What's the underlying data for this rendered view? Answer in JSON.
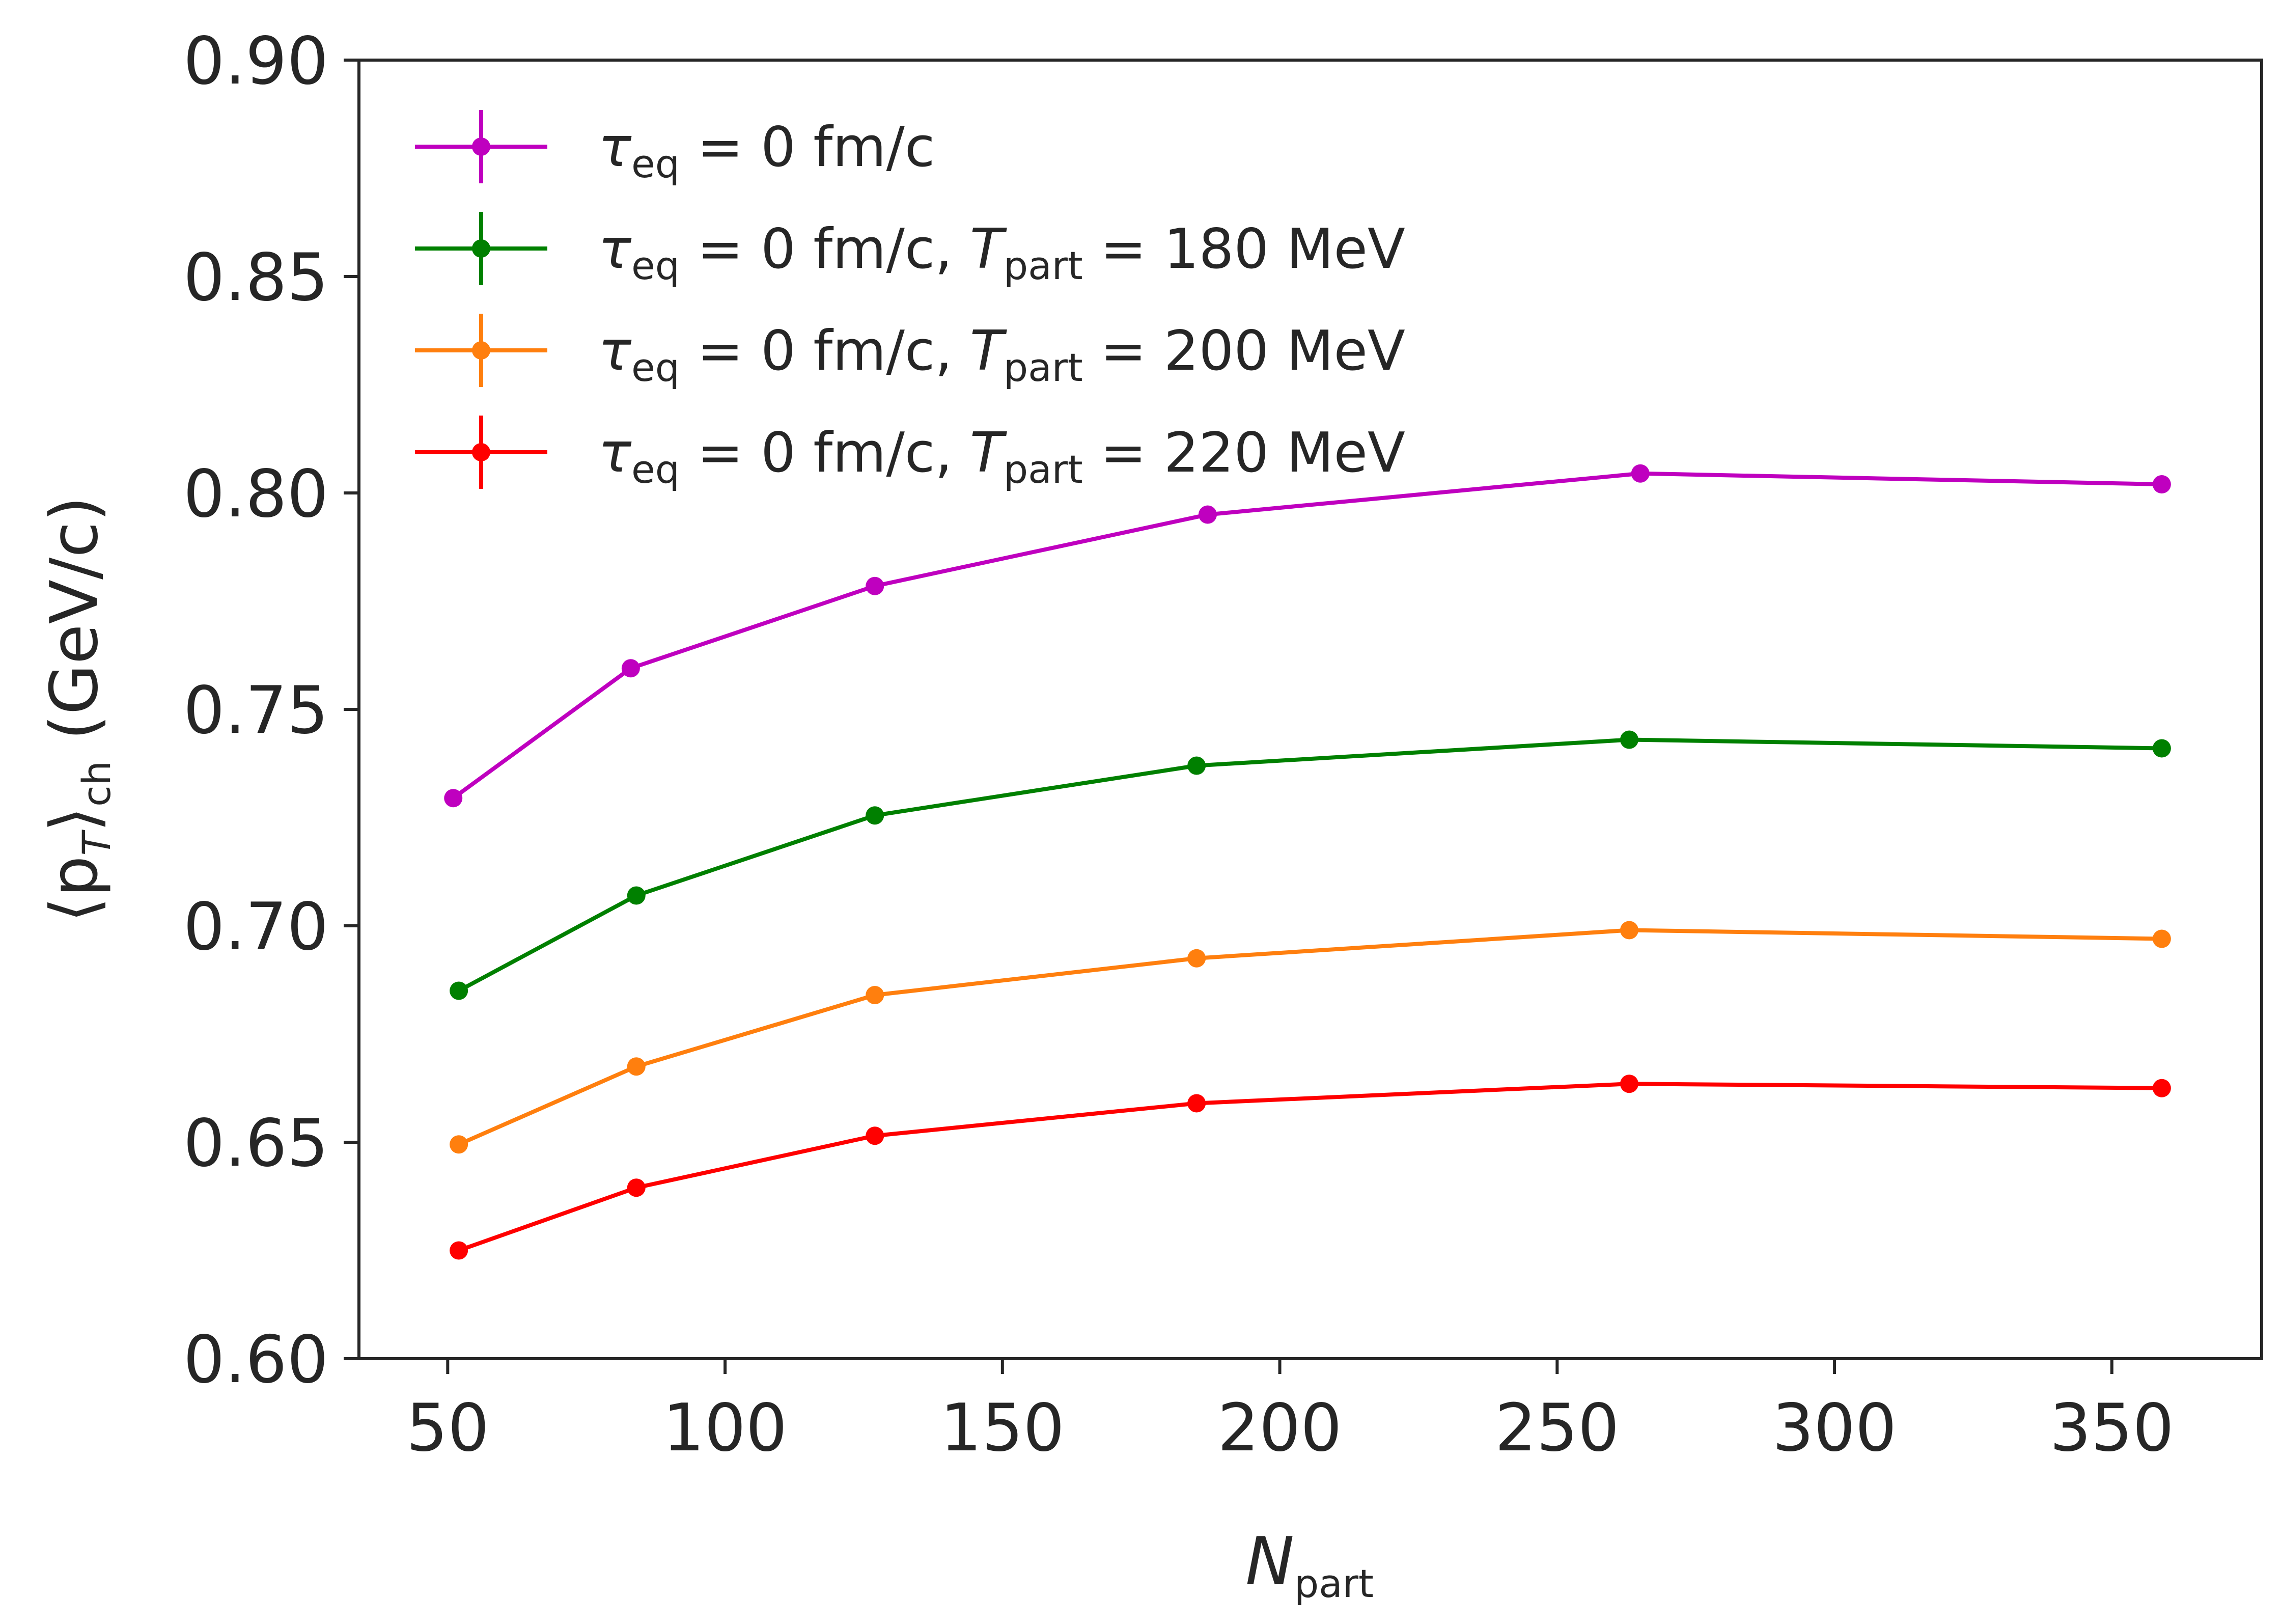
{
  "chart_data": {
    "type": "line",
    "title": "",
    "xlabel": {
      "main": "N",
      "sub": "part"
    },
    "ylabel": {
      "pre": "⟨p",
      "sub1": "T",
      "mid": "⟩",
      "sub2": "ch",
      "post": " (GeV/c)"
    },
    "xlim": [
      34,
      377
    ],
    "ylim": [
      0.6,
      0.9
    ],
    "xticks": [
      50,
      100,
      150,
      200,
      250,
      300,
      350
    ],
    "xtick_labels": [
      "50",
      "100",
      "150",
      "200",
      "250",
      "300",
      "350"
    ],
    "yticks": [
      0.6,
      0.65,
      0.7,
      0.75,
      0.8,
      0.85,
      0.9
    ],
    "ytick_labels": [
      "0.60",
      "0.65",
      "0.70",
      "0.75",
      "0.80",
      "0.85",
      "0.90"
    ],
    "grid": false,
    "legend_position": "top-left",
    "series": [
      {
        "name": "τeq = 0 fm/c",
        "legend": {
          "tau": "τ",
          "tau_sub": "eq",
          "eq": " = 0 fm/c",
          "t": "",
          "t_sub": "",
          "temp": ""
        },
        "color": "#bf00bf",
        "x": [
          51,
          83,
          127,
          187,
          265,
          359
        ],
        "y": [
          0.7295,
          0.7595,
          0.7785,
          0.795,
          0.8045,
          0.802
        ]
      },
      {
        "name": "τeq = 0 fm/c, Tpart = 180 MeV",
        "legend": {
          "tau": "τ",
          "tau_sub": "eq",
          "eq": " = 0 fm/c, ",
          "t": "T",
          "t_sub": "part",
          "temp": " = 180 MeV"
        },
        "color": "#008000",
        "x": [
          52,
          84,
          127,
          185,
          263,
          359
        ],
        "y": [
          0.685,
          0.707,
          0.7255,
          0.737,
          0.743,
          0.741
        ]
      },
      {
        "name": "τeq = 0 fm/c, Tpart = 200 MeV",
        "legend": {
          "tau": "τ",
          "tau_sub": "eq",
          "eq": " = 0 fm/c, ",
          "t": "T",
          "t_sub": "part",
          "temp": " = 200 MeV"
        },
        "color": "#ff7f0e",
        "x": [
          52,
          84,
          127,
          185,
          263,
          359
        ],
        "y": [
          0.6495,
          0.6675,
          0.684,
          0.6925,
          0.699,
          0.697
        ]
      },
      {
        "name": "τeq = 0 fm/c, Tpart = 220 MeV",
        "legend": {
          "tau": "τ",
          "tau_sub": "eq",
          "eq": " = 0 fm/c, ",
          "t": "T",
          "t_sub": "part",
          "temp": " = 220 MeV"
        },
        "color": "#ff0000",
        "x": [
          52,
          84,
          127,
          185,
          263,
          359
        ],
        "y": [
          0.625,
          0.6395,
          0.6515,
          0.659,
          0.6635,
          0.6625
        ]
      }
    ]
  }
}
